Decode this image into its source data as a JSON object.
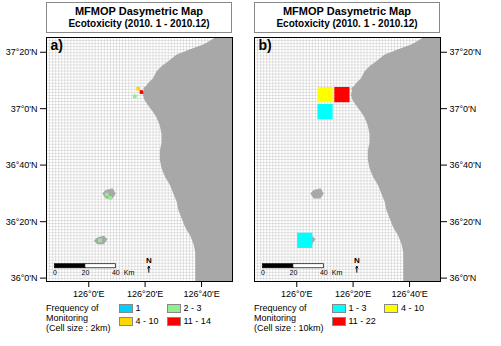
{
  "chart_data": [
    {
      "type": "map",
      "title": "MFMOP Dasymetric Map",
      "subtitle": "Ecotoxicity (2010. 1 - 2010.12)",
      "panel_label": "a)",
      "xlim": [
        125.75,
        126.85
      ],
      "ylim": [
        35.98,
        37.42
      ],
      "xticks": [
        {
          "value": 126.0,
          "label": "126°0'E"
        },
        {
          "value": 126.333,
          "label": "126°20'E"
        },
        {
          "value": 126.667,
          "label": "126°40'E"
        }
      ],
      "yticks": [
        {
          "value": 36.0,
          "label": "36°0'N"
        },
        {
          "value": 36.333,
          "label": "36°20'N"
        },
        {
          "value": 36.667,
          "label": "36°40'N"
        },
        {
          "value": 37.0,
          "label": "37°0'N"
        },
        {
          "value": 37.333,
          "label": "37°20'N"
        }
      ],
      "grid": true,
      "land": {
        "color": "#a8a8a8",
        "polygons": [
          [
            [
              126.85,
              37.42
            ],
            [
              126.75,
              37.42
            ],
            [
              126.68,
              37.38
            ],
            [
              126.6,
              37.35
            ],
            [
              126.52,
              37.32
            ],
            [
              126.47,
              37.28
            ],
            [
              126.43,
              37.25
            ],
            [
              126.4,
              37.22
            ],
            [
              126.38,
              37.18
            ],
            [
              126.35,
              37.15
            ],
            [
              126.33,
              37.12
            ],
            [
              126.32,
              37.08
            ],
            [
              126.33,
              37.05
            ],
            [
              126.35,
              37.02
            ],
            [
              126.38,
              36.98
            ],
            [
              126.4,
              36.95
            ],
            [
              126.42,
              36.9
            ],
            [
              126.43,
              36.85
            ],
            [
              126.43,
              36.8
            ],
            [
              126.42,
              36.75
            ],
            [
              126.42,
              36.7
            ],
            [
              126.43,
              36.65
            ],
            [
              126.45,
              36.6
            ],
            [
              126.48,
              36.55
            ],
            [
              126.5,
              36.5
            ],
            [
              126.52,
              36.45
            ],
            [
              126.53,
              36.4
            ],
            [
              126.55,
              36.35
            ],
            [
              126.57,
              36.3
            ],
            [
              126.6,
              36.25
            ],
            [
              126.62,
              36.2
            ],
            [
              126.63,
              36.15
            ],
            [
              126.63,
              36.08
            ],
            [
              126.63,
              35.98
            ],
            [
              126.85,
              35.98
            ],
            [
              126.85,
              37.42
            ]
          ],
          [
            [
              126.32,
              37.12
            ],
            [
              126.35,
              37.1
            ],
            [
              126.38,
              37.08
            ],
            [
              126.4,
              37.05
            ],
            [
              126.42,
              37.02
            ],
            [
              126.44,
              37.0
            ],
            [
              126.46,
              36.98
            ],
            [
              126.48,
              36.95
            ],
            [
              126.5,
              36.92
            ],
            [
              126.52,
              36.9
            ],
            [
              126.55,
              36.88
            ],
            [
              126.58,
              36.87
            ],
            [
              126.62,
              36.87
            ],
            [
              126.65,
              36.88
            ],
            [
              126.68,
              36.9
            ],
            [
              126.7,
              36.93
            ],
            [
              126.72,
              36.97
            ],
            [
              126.73,
              37.02
            ],
            [
              126.73,
              37.08
            ],
            [
              126.72,
              37.12
            ],
            [
              126.7,
              37.16
            ],
            [
              126.68,
              37.2
            ],
            [
              126.65,
              37.23
            ],
            [
              126.62,
              37.25
            ],
            [
              126.58,
              37.27
            ],
            [
              126.55,
              37.28
            ],
            [
              126.52,
              37.28
            ],
            [
              126.5,
              37.27
            ],
            [
              126.47,
              37.26
            ],
            [
              126.45,
              37.24
            ],
            [
              126.43,
              37.22
            ],
            [
              126.4,
              37.2
            ],
            [
              126.38,
              37.16
            ],
            [
              126.35,
              37.14
            ],
            [
              126.32,
              37.12
            ]
          ],
          [
            [
              126.55,
              37.28
            ],
            [
              126.6,
              37.3
            ],
            [
              126.65,
              37.33
            ],
            [
              126.68,
              37.36
            ],
            [
              126.7,
              37.38
            ],
            [
              126.72,
              37.4
            ],
            [
              126.75,
              37.42
            ],
            [
              126.85,
              37.42
            ],
            [
              126.85,
              37.28
            ],
            [
              126.75,
              37.25
            ],
            [
              126.7,
              37.23
            ],
            [
              126.65,
              37.22
            ],
            [
              126.6,
              37.25
            ],
            [
              126.55,
              37.28
            ]
          ],
          [
            [
              126.1,
              36.47
            ],
            [
              126.14,
              36.47
            ],
            [
              126.16,
              36.5
            ],
            [
              126.14,
              36.53
            ],
            [
              126.1,
              36.52
            ],
            [
              126.08,
              36.5
            ]
          ],
          [
            [
              126.05,
              36.2
            ],
            [
              126.09,
              36.2
            ],
            [
              126.11,
              36.23
            ],
            [
              126.09,
              36.25
            ],
            [
              126.05,
              36.24
            ],
            [
              126.03,
              36.22
            ]
          ]
        ]
      },
      "cells": [
        {
          "lon": 126.295,
          "lat": 37.115,
          "color": "#ffd700",
          "size": 0.022
        },
        {
          "lon": 126.315,
          "lat": 37.095,
          "color": "#ff0000",
          "size": 0.022
        },
        {
          "lon": 126.275,
          "lat": 37.07,
          "color": "#90ee90",
          "size": 0.022
        },
        {
          "lon": 126.11,
          "lat": 36.49,
          "color": "#90ee90",
          "size": 0.022
        },
        {
          "lon": 126.13,
          "lat": 36.47,
          "color": "#90ee90",
          "size": 0.022
        },
        {
          "lon": 126.07,
          "lat": 36.22,
          "color": "#90ee90",
          "size": 0.022
        }
      ],
      "legend": "bottom",
      "legend_title": "Frequency of\nMonitoring\n(Cell size : 2km)",
      "legend_items": [
        {
          "name": "1",
          "color": "#00cfff"
        },
        {
          "name": "2 - 3",
          "color": "#90ee90"
        },
        {
          "name": "4 - 10",
          "color": "#ffd700"
        },
        {
          "name": "11 - 14",
          "color": "#ff0000"
        }
      ],
      "scale_bar": {
        "ticks": [
          0,
          20,
          40
        ],
        "unit": "Km"
      },
      "north_label": "N"
    },
    {
      "type": "map",
      "title": "MFMOP Dasymetric Map",
      "subtitle": "Ecotoxicity (2010. 1 - 2010.12)",
      "panel_label": "b)",
      "xlim": [
        125.75,
        126.85
      ],
      "ylim": [
        35.98,
        37.42
      ],
      "xticks": [
        {
          "value": 126.0,
          "label": "126°0'E"
        },
        {
          "value": 126.333,
          "label": "126°20'E"
        },
        {
          "value": 126.667,
          "label": "126°40'E"
        }
      ],
      "yticks": [
        {
          "value": 36.0,
          "label": "36°0'N"
        },
        {
          "value": 36.333,
          "label": "36°20'N"
        },
        {
          "value": 36.667,
          "label": "36°40'N"
        },
        {
          "value": 37.0,
          "label": "37°0'N"
        },
        {
          "value": 37.333,
          "label": "37°20'N"
        }
      ],
      "grid": true,
      "land": {
        "color": "#a8a8a8",
        "polygons": [
          [
            [
              126.85,
              37.42
            ],
            [
              126.75,
              37.42
            ],
            [
              126.68,
              37.38
            ],
            [
              126.6,
              37.35
            ],
            [
              126.52,
              37.32
            ],
            [
              126.47,
              37.28
            ],
            [
              126.43,
              37.25
            ],
            [
              126.4,
              37.22
            ],
            [
              126.38,
              37.18
            ],
            [
              126.35,
              37.15
            ],
            [
              126.33,
              37.12
            ],
            [
              126.32,
              37.08
            ],
            [
              126.33,
              37.05
            ],
            [
              126.35,
              37.02
            ],
            [
              126.38,
              36.98
            ],
            [
              126.4,
              36.95
            ],
            [
              126.42,
              36.9
            ],
            [
              126.43,
              36.85
            ],
            [
              126.43,
              36.8
            ],
            [
              126.42,
              36.75
            ],
            [
              126.42,
              36.7
            ],
            [
              126.43,
              36.65
            ],
            [
              126.45,
              36.6
            ],
            [
              126.48,
              36.55
            ],
            [
              126.5,
              36.5
            ],
            [
              126.52,
              36.45
            ],
            [
              126.53,
              36.4
            ],
            [
              126.55,
              36.35
            ],
            [
              126.57,
              36.3
            ],
            [
              126.6,
              36.25
            ],
            [
              126.62,
              36.2
            ],
            [
              126.63,
              36.15
            ],
            [
              126.63,
              36.08
            ],
            [
              126.63,
              35.98
            ],
            [
              126.85,
              35.98
            ],
            [
              126.85,
              37.42
            ]
          ],
          [
            [
              126.32,
              37.12
            ],
            [
              126.35,
              37.1
            ],
            [
              126.38,
              37.08
            ],
            [
              126.4,
              37.05
            ],
            [
              126.42,
              37.02
            ],
            [
              126.44,
              37.0
            ],
            [
              126.46,
              36.98
            ],
            [
              126.48,
              36.95
            ],
            [
              126.5,
              36.92
            ],
            [
              126.52,
              36.9
            ],
            [
              126.55,
              36.88
            ],
            [
              126.58,
              36.87
            ],
            [
              126.62,
              36.87
            ],
            [
              126.65,
              36.88
            ],
            [
              126.68,
              36.9
            ],
            [
              126.7,
              36.93
            ],
            [
              126.72,
              36.97
            ],
            [
              126.73,
              37.02
            ],
            [
              126.73,
              37.08
            ],
            [
              126.72,
              37.12
            ],
            [
              126.7,
              37.16
            ],
            [
              126.68,
              37.2
            ],
            [
              126.65,
              37.23
            ],
            [
              126.62,
              37.25
            ],
            [
              126.58,
              37.27
            ],
            [
              126.55,
              37.28
            ],
            [
              126.52,
              37.28
            ],
            [
              126.5,
              37.27
            ],
            [
              126.47,
              37.26
            ],
            [
              126.45,
              37.24
            ],
            [
              126.43,
              37.22
            ],
            [
              126.4,
              37.2
            ],
            [
              126.38,
              37.16
            ],
            [
              126.35,
              37.14
            ],
            [
              126.32,
              37.12
            ]
          ],
          [
            [
              126.55,
              37.28
            ],
            [
              126.6,
              37.3
            ],
            [
              126.65,
              37.33
            ],
            [
              126.68,
              37.36
            ],
            [
              126.7,
              37.38
            ],
            [
              126.72,
              37.4
            ],
            [
              126.75,
              37.42
            ],
            [
              126.85,
              37.42
            ],
            [
              126.85,
              37.28
            ],
            [
              126.75,
              37.25
            ],
            [
              126.7,
              37.23
            ],
            [
              126.65,
              37.22
            ],
            [
              126.6,
              37.25
            ],
            [
              126.55,
              37.28
            ]
          ],
          [
            [
              126.1,
              36.47
            ],
            [
              126.14,
              36.47
            ],
            [
              126.16,
              36.5
            ],
            [
              126.14,
              36.53
            ],
            [
              126.1,
              36.52
            ],
            [
              126.08,
              36.5
            ]
          ],
          [
            [
              126.05,
              36.2
            ],
            [
              126.09,
              36.2
            ],
            [
              126.11,
              36.23
            ],
            [
              126.09,
              36.25
            ],
            [
              126.05,
              36.24
            ],
            [
              126.03,
              36.22
            ]
          ]
        ]
      },
      "cells": [
        {
          "lon": 126.17,
          "lat": 37.08,
          "color": "#ffff00",
          "size": 0.09
        },
        {
          "lon": 126.27,
          "lat": 37.08,
          "color": "#ff0000",
          "size": 0.09
        },
        {
          "lon": 126.17,
          "lat": 36.98,
          "color": "#00ffff",
          "size": 0.09
        },
        {
          "lon": 126.05,
          "lat": 36.22,
          "color": "#00ffff",
          "size": 0.09
        }
      ],
      "legend": "bottom",
      "legend_title": "Frequency of\nMonitoring\n(Cell size : 10km)",
      "legend_items": [
        {
          "name": "1 - 3",
          "color": "#00ffff"
        },
        {
          "name": "4 - 10",
          "color": "#ffff00"
        },
        {
          "name": "11 - 22",
          "color": "#ff0000"
        }
      ],
      "scale_bar": {
        "ticks": [
          0,
          20,
          40
        ],
        "unit": "Km"
      },
      "north_label": "N"
    }
  ]
}
